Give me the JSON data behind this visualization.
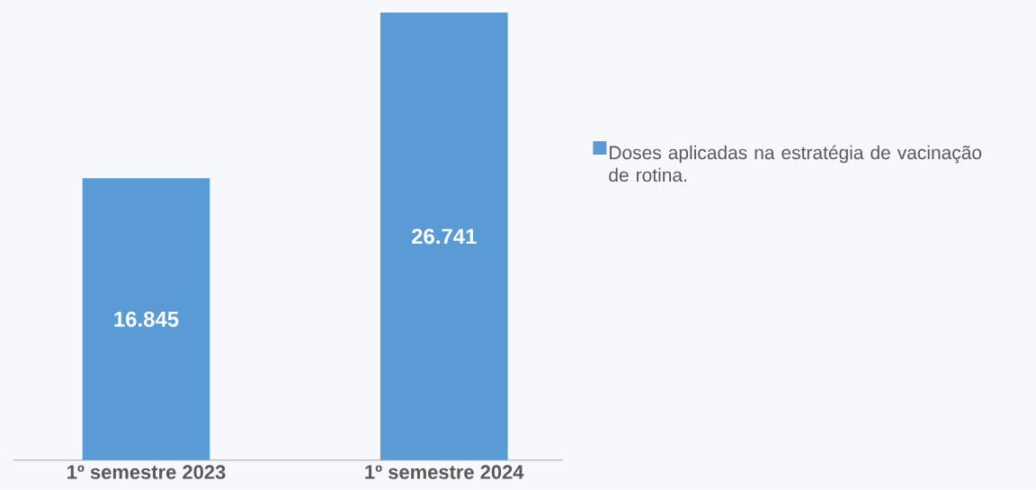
{
  "chart_data": {
    "type": "bar",
    "categories": [
      "1º semestre 2023",
      "1º semestre 2024"
    ],
    "series": [
      {
        "name": "Doses aplicadas na estratégia de vacinação de rotina.",
        "color": "#5b9bd5",
        "values": [
          16845,
          26741
        ],
        "value_labels": [
          "16.845",
          "26.741"
        ]
      }
    ],
    "ylim": [
      0,
      26741
    ],
    "legend": "right"
  }
}
